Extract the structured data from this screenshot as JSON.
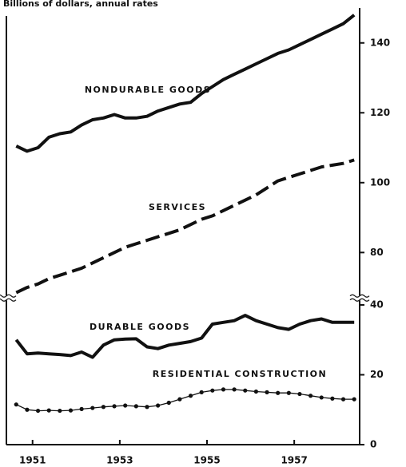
{
  "chart_data": {
    "type": "line",
    "title": "Billions of dollars, annual rates",
    "x": [
      1950.625,
      1950.875,
      1951.125,
      1951.375,
      1951.625,
      1951.875,
      1952.125,
      1952.375,
      1952.625,
      1952.875,
      1953.125,
      1953.375,
      1953.625,
      1953.875,
      1954.125,
      1954.375,
      1954.625,
      1954.875,
      1955.125,
      1955.375,
      1955.625,
      1955.875,
      1956.125,
      1956.375,
      1956.625,
      1956.875,
      1957.125,
      1957.375,
      1957.625,
      1957.875,
      1958.125,
      1958.375
    ],
    "xlim": [
      1950.4,
      1958.5
    ],
    "xticks": [
      1951,
      1953,
      1955,
      1957
    ],
    "ylim": [
      0,
      150
    ],
    "ybreak": [
      42,
      67
    ],
    "yticks": [
      0,
      20,
      40,
      80,
      100,
      120,
      140
    ],
    "series": [
      {
        "name": "NONDURABLE GOODS",
        "color": "#111111",
        "line_style": "solid",
        "values": [
          110.5,
          109,
          110,
          113,
          114,
          114.5,
          116.5,
          118,
          118.5,
          119.5,
          118.5,
          118.5,
          119,
          120.5,
          121.5,
          122.5,
          123,
          125.5,
          127.5,
          129.5,
          131,
          132.5,
          134,
          135.5,
          137,
          138,
          139.5,
          141,
          142.5,
          144,
          145.5,
          148
        ]
      },
      {
        "name": "SERVICES",
        "color": "#111111",
        "line_style": "dashed",
        "values": [
          68.5,
          70,
          71,
          72.5,
          73.5,
          74.5,
          75.5,
          77,
          78.5,
          80,
          81.5,
          82.5,
          83.5,
          84.5,
          85.5,
          86.5,
          88,
          89.5,
          90.5,
          92,
          93.5,
          95,
          96.5,
          98.5,
          100.5,
          101.5,
          102.5,
          103.5,
          104.5,
          105,
          105.5,
          106.5
        ]
      },
      {
        "name": "DURABLE GOODS",
        "color": "#111111",
        "line_style": "solid",
        "values": [
          30,
          26,
          26.2,
          26,
          25.8,
          25.5,
          26.5,
          25,
          28.5,
          30,
          30.2,
          30.3,
          28,
          27.5,
          28.5,
          29,
          29.5,
          30.5,
          34.5,
          35,
          35.5,
          37,
          35.5,
          34.5,
          33.5,
          33,
          34.5,
          35.5,
          36,
          35,
          35,
          35
        ]
      },
      {
        "name": "RESIDENTIAL CONSTRUCTION",
        "color": "#111111",
        "line_style": "dotted",
        "values": [
          11.5,
          10,
          9.7,
          9.8,
          9.7,
          9.8,
          10.2,
          10.5,
          10.8,
          11,
          11.2,
          11,
          10.8,
          11.2,
          12,
          13,
          14,
          15,
          15.5,
          15.8,
          15.8,
          15.5,
          15.2,
          15,
          14.8,
          14.8,
          14.5,
          14,
          13.5,
          13.2,
          13,
          13
        ]
      }
    ]
  }
}
